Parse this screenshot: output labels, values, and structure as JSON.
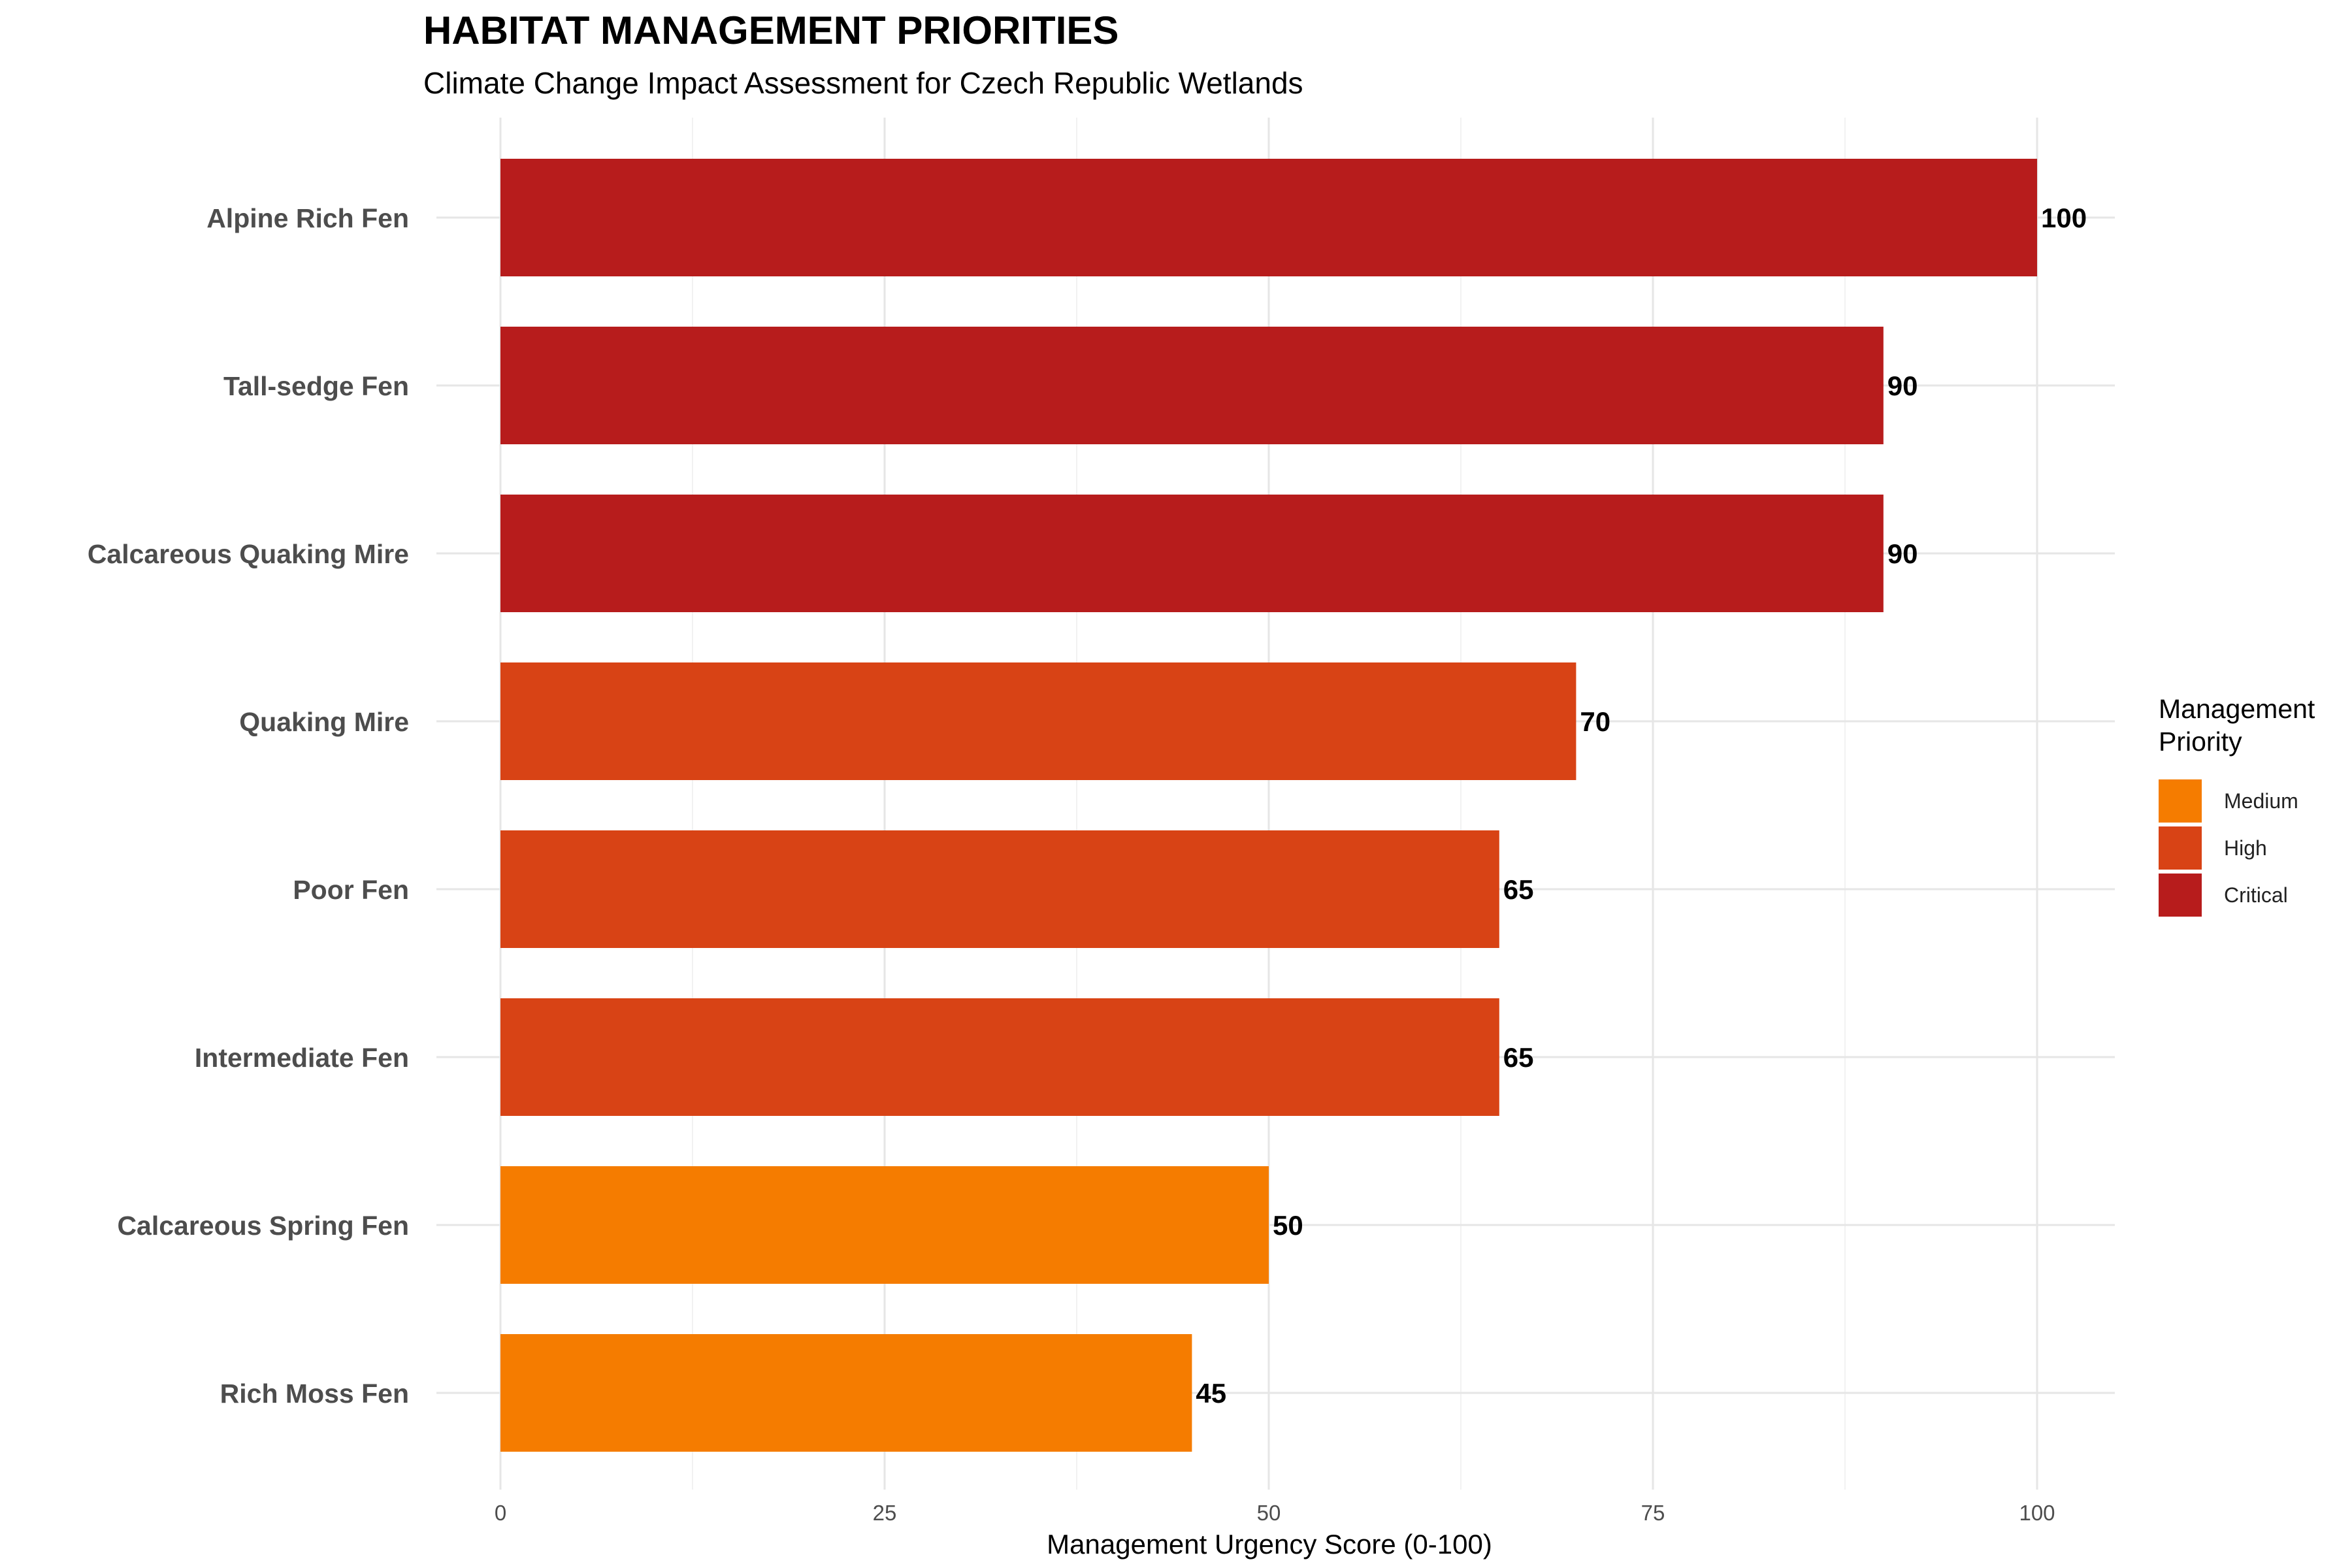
{
  "chart_data": {
    "type": "bar",
    "orientation": "horizontal",
    "title": "HABITAT MANAGEMENT PRIORITIES",
    "subtitle": "Climate Change Impact Assessment for Czech Republic Wetlands",
    "xlabel": "Management Urgency Score (0-100)",
    "ylabel": "",
    "xlim": [
      0,
      105
    ],
    "x_ticks": [
      "0",
      "25",
      "50",
      "75",
      "100"
    ],
    "grid": true,
    "categories": [
      "Alpine Rich Fen",
      "Tall-sedge Fen",
      "Calcareous Quaking Mire",
      "Quaking Mire",
      "Poor Fen",
      "Intermediate Fen",
      "Calcareous Spring Fen",
      "Rich Moss Fen"
    ],
    "values": [
      100,
      90,
      90,
      70,
      65,
      65,
      50,
      45
    ],
    "priority": [
      "Critical",
      "Critical",
      "Critical",
      "High",
      "High",
      "High",
      "Medium",
      "Medium"
    ],
    "data_labels": [
      "100",
      "90",
      "90",
      "70",
      "65",
      "65",
      "50",
      "45"
    ],
    "legend": {
      "title": "Management Priority",
      "placement": "right",
      "items": [
        {
          "label": "Medium",
          "color": "#F57C00"
        },
        {
          "label": "High",
          "color": "#D84315"
        },
        {
          "label": "Critical",
          "color": "#B71C1C"
        }
      ]
    }
  }
}
